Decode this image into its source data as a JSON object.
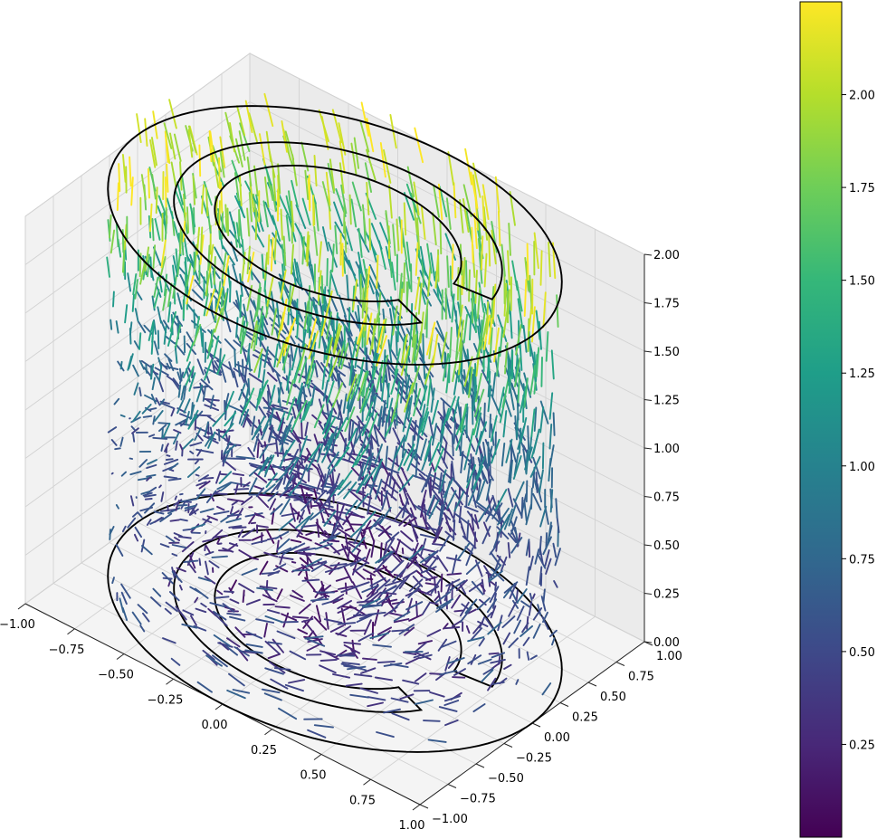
{
  "chart_data": {
    "type": "quiver3d",
    "title": "",
    "xlabel": "",
    "ylabel": "",
    "zlabel": "",
    "xlim": [
      -1.0,
      1.0
    ],
    "ylim": [
      -1.0,
      1.0
    ],
    "zlim": [
      0.0,
      2.0
    ],
    "x_ticks": [
      "−1.00",
      "−0.75",
      "−0.50",
      "−0.25",
      "0.00",
      "0.25",
      "0.50",
      "0.75",
      "1.00"
    ],
    "y_ticks": [
      "−1.00",
      "−0.75",
      "−0.50",
      "−0.25",
      "0.00",
      "0.25",
      "0.50",
      "0.75",
      "1.00"
    ],
    "z_ticks": [
      "0.00",
      "0.25",
      "0.50",
      "0.75",
      "1.00",
      "1.25",
      "1.50",
      "1.75",
      "2.00"
    ],
    "grid": true,
    "colormap": "viridis",
    "colorbar": {
      "min": 0.0,
      "max": 2.25,
      "ticks": [
        "0.25",
        "0.50",
        "0.75",
        "1.00",
        "1.25",
        "1.50",
        "1.75",
        "2.00"
      ]
    },
    "vector_field": {
      "domain": "x^2 + y^2 <= 1, 0 <= z <= 2",
      "magnitude_range": [
        0.0,
        2.25
      ],
      "color_encodes": "vector magnitude"
    },
    "contours": [
      {
        "z": 0.0,
        "shape": "outer circle r=1 with inner S-shaped closed curve"
      },
      {
        "z": 2.0,
        "shape": "outer circle r=1 with inner S-shaped closed curve"
      }
    ],
    "colors": {
      "pane": "#f2f2f2",
      "grid": "#d2d2d2",
      "contour": "#000000",
      "viridis": [
        "#440154",
        "#482878",
        "#3e4989",
        "#31688e",
        "#26828e",
        "#1f9e89",
        "#35b779",
        "#6ece58",
        "#b5de2b",
        "#fde725"
      ]
    }
  }
}
